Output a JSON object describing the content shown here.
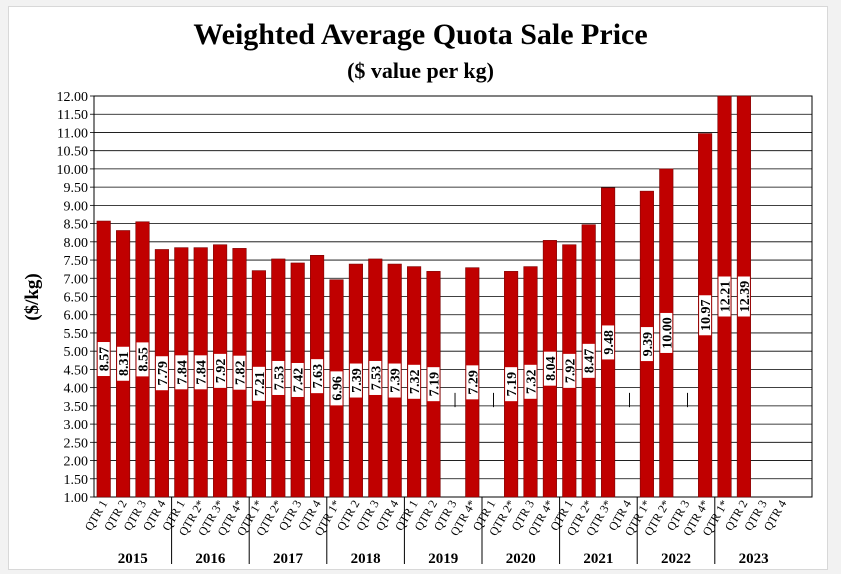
{
  "chart_data": {
    "type": "bar",
    "title": "Weighted Average Quota Sale Price",
    "subtitle": "($ value per kg)",
    "ylabel": "($/kg)",
    "xlabel": "",
    "ylim": [
      1.0,
      12.0
    ],
    "yticks": [
      "1.00",
      "1.50",
      "2.00",
      "2.50",
      "3.00",
      "3.50",
      "4.00",
      "4.50",
      "5.00",
      "5.50",
      "6.00",
      "6.50",
      "7.00",
      "7.50",
      "8.00",
      "8.50",
      "9.00",
      "9.50",
      "10.00",
      "10.50",
      "11.00",
      "11.50",
      "12.00"
    ],
    "grid": true,
    "bar_color": "#c00000",
    "groups": [
      {
        "year": "2015",
        "quarters": [
          {
            "label": "QTR 1",
            "value": 8.57,
            "display": "8.57"
          },
          {
            "label": "QTR 2",
            "value": 8.31,
            "display": "8.31"
          },
          {
            "label": "QTR 3",
            "value": 8.55,
            "display": "8.55"
          },
          {
            "label": "QTR 4",
            "value": 7.79,
            "display": "7.79"
          }
        ]
      },
      {
        "year": "2016",
        "quarters": [
          {
            "label": "QTR 1",
            "value": 7.84,
            "display": "7.84"
          },
          {
            "label": "QTR 2*",
            "value": 7.84,
            "display": "7.84"
          },
          {
            "label": "QTR 3*",
            "value": 7.92,
            "display": "7.92"
          },
          {
            "label": "QTR 4*",
            "value": 7.82,
            "display": "7.82"
          }
        ]
      },
      {
        "year": "2017",
        "quarters": [
          {
            "label": "QTR 1*",
            "value": 7.21,
            "display": "7.21"
          },
          {
            "label": "QTR 2*",
            "value": 7.53,
            "display": "7.53"
          },
          {
            "label": "QTR 3",
            "value": 7.42,
            "display": "7.42"
          },
          {
            "label": "QTR 4",
            "value": 7.63,
            "display": "7.63"
          }
        ]
      },
      {
        "year": "2018",
        "quarters": [
          {
            "label": "QTR 1*",
            "value": 6.96,
            "display": "6.96"
          },
          {
            "label": "QTR 2",
            "value": 7.39,
            "display": "7.39"
          },
          {
            "label": "QTR 3",
            "value": 7.53,
            "display": "7.53"
          },
          {
            "label": "QTR 4",
            "value": 7.39,
            "display": "7.39"
          }
        ]
      },
      {
        "year": "2019",
        "quarters": [
          {
            "label": "QTR 1",
            "value": 7.32,
            "display": "7.32"
          },
          {
            "label": "QTR 2",
            "value": 7.19,
            "display": "7.19"
          },
          {
            "label": "QTR 3",
            "value": null,
            "display": "—"
          },
          {
            "label": "QTR 4*",
            "value": 7.29,
            "display": "7.29"
          }
        ]
      },
      {
        "year": "2020",
        "quarters": [
          {
            "label": "QTR 1",
            "value": null,
            "display": "—"
          },
          {
            "label": "QTR 2*",
            "value": 7.19,
            "display": "7.19"
          },
          {
            "label": "QTR 3",
            "value": 7.32,
            "display": "7.32"
          },
          {
            "label": "QTR 4*",
            "value": 8.04,
            "display": "8.04"
          }
        ]
      },
      {
        "year": "2021",
        "quarters": [
          {
            "label": "QTR 1",
            "value": 7.92,
            "display": "7.92"
          },
          {
            "label": "QTR 2*",
            "value": 8.47,
            "display": "8.47"
          },
          {
            "label": "QTR 3*",
            "value": 9.48,
            "display": "9.48"
          },
          {
            "label": "QTR 4",
            "value": null,
            "display": "—"
          }
        ]
      },
      {
        "year": "2022",
        "quarters": [
          {
            "label": "QTR 1*",
            "value": 9.39,
            "display": "9.39"
          },
          {
            "label": "QTR 2*",
            "value": 10.0,
            "display": "10.00"
          },
          {
            "label": "QTR 3",
            "value": null,
            "display": "—"
          },
          {
            "label": "QTR 4*",
            "value": 10.97,
            "display": "10.97"
          }
        ]
      },
      {
        "year": "2023",
        "quarters": [
          {
            "label": "QTR 1*",
            "value": 12.21,
            "display": "12.21"
          },
          {
            "label": "QTR 2",
            "value": 12.39,
            "display": "12.39"
          },
          {
            "label": "QTR 3",
            "value": null,
            "display": ""
          },
          {
            "label": "QTR 4",
            "value": null,
            "display": ""
          }
        ]
      }
    ]
  }
}
